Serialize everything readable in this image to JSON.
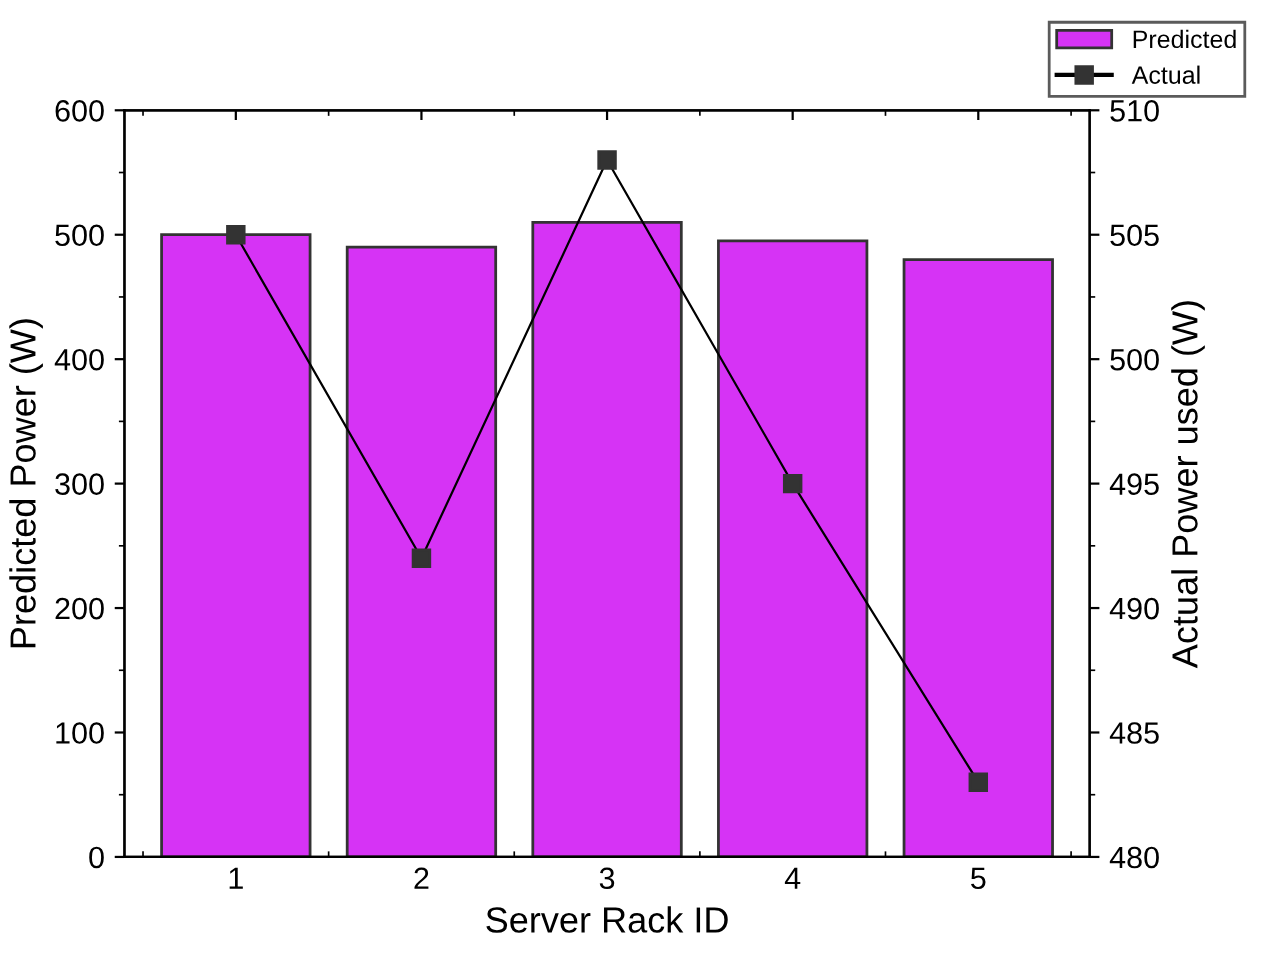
{
  "chart_data": {
    "type": "bar",
    "xlabel": "Server Rack ID",
    "ylabel": "Predicted Power (W)",
    "y2label": "Actual Power used (W)",
    "categories": [
      "1",
      "2",
      "3",
      "4",
      "5"
    ],
    "series": [
      {
        "name": "Predicted",
        "color": "#d633f5",
        "values": [
          500,
          490,
          510,
          495,
          480
        ]
      },
      {
        "name": "Actual",
        "type": "line",
        "axis": "y2",
        "color": "#000000",
        "marker": "square",
        "values": [
          505,
          492,
          508,
          495,
          483
        ]
      }
    ],
    "ylim": [
      0,
      600
    ],
    "yticks": [
      0,
      100,
      200,
      300,
      400,
      500,
      600
    ],
    "y2lim": [
      480,
      510
    ],
    "y2ticks": [
      480,
      485,
      490,
      495,
      500,
      505,
      510
    ],
    "grid": false,
    "legend": "top right"
  }
}
